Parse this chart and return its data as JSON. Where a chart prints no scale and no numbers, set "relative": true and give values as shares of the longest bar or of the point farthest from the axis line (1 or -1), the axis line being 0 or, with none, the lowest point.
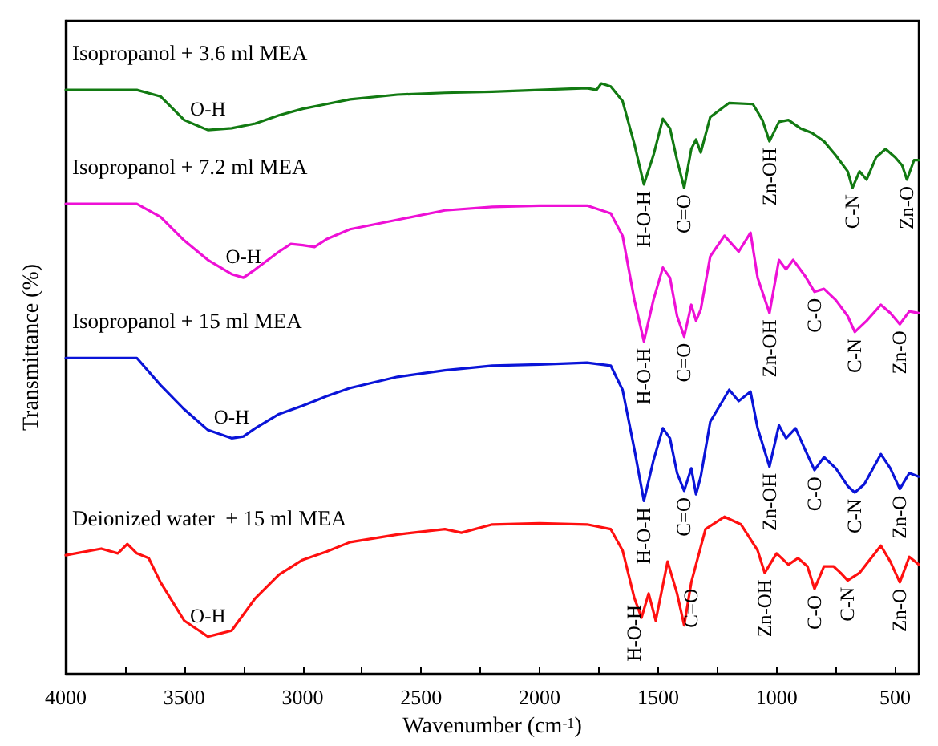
{
  "chart_data": {
    "type": "line",
    "relative": true,
    "xlabel": "Wavenumber (cm$^{-1}$)",
    "ylabel": "Transmittance (%)",
    "xlim": [
      4000,
      400
    ],
    "xticks": [
      4000,
      {
        "value": 3750,
        "label": null
      },
      3500,
      {
        "value": 3250,
        "label": null
      },
      3000,
      {
        "value": 2750,
        "label": null
      },
      2500,
      {
        "value": 2250,
        "label": null
      },
      2000,
      {
        "value": 1750,
        "label": null
      },
      1500,
      {
        "value": 1250,
        "label": null
      },
      1000,
      {
        "value": 750,
        "label": null
      },
      500
    ],
    "legend": false,
    "grid": false,
    "marker": "none",
    "line_style": "solid",
    "series": [
      {
        "name": "Isopropanol + 3.6 ml MEA",
        "color": "#127a12",
        "x": [
          4000,
          3700,
          3600,
          3500,
          3400,
          3300,
          3200,
          3100,
          3000,
          2900,
          2800,
          2600,
          2400,
          2200,
          2000,
          1800,
          1760,
          1740,
          1700,
          1650,
          1600,
          1560,
          1520,
          1480,
          1450,
          1420,
          1390,
          1360,
          1340,
          1320,
          1280,
          1200,
          1100,
          1060,
          1030,
          990,
          950,
          900,
          850,
          800,
          750,
          700,
          680,
          650,
          620,
          580,
          540,
          500,
          470,
          450,
          420,
          400
        ],
        "values": [
          0.989,
          0.989,
          0.978,
          0.938,
          0.921,
          0.924,
          0.932,
          0.946,
          0.957,
          0.965,
          0.973,
          0.981,
          0.984,
          0.986,
          0.989,
          0.992,
          0.989,
          1,
          0.995,
          0.97,
          0.897,
          0.829,
          0.878,
          0.94,
          0.924,
          0.87,
          0.823,
          0.889,
          0.905,
          0.883,
          0.943,
          0.967,
          0.965,
          0.938,
          0.902,
          0.935,
          0.938,
          0.924,
          0.916,
          0.902,
          0.878,
          0.851,
          0.823,
          0.851,
          0.837,
          0.875,
          0.889,
          0.875,
          0.861,
          0.837,
          0.87,
          0.87
        ]
      },
      {
        "name": "Isopropanol + 7.2 ml MEA",
        "color": "#ee10d6",
        "x": [
          4000,
          3700,
          3600,
          3500,
          3400,
          3300,
          3250,
          3200,
          3100,
          3050,
          3000,
          2950,
          2900,
          2800,
          2600,
          2400,
          2200,
          2000,
          1800,
          1700,
          1650,
          1600,
          1560,
          1520,
          1480,
          1450,
          1420,
          1390,
          1360,
          1340,
          1320,
          1280,
          1220,
          1160,
          1110,
          1080,
          1030,
          990,
          960,
          930,
          880,
          840,
          800,
          750,
          700,
          670,
          620,
          560,
          520,
          480,
          440,
          400
        ],
        "values": [
          0.796,
          0.796,
          0.774,
          0.734,
          0.701,
          0.677,
          0.671,
          0.685,
          0.715,
          0.728,
          0.726,
          0.723,
          0.736,
          0.753,
          0.769,
          0.785,
          0.791,
          0.793,
          0.793,
          0.78,
          0.742,
          0.633,
          0.563,
          0.633,
          0.688,
          0.671,
          0.606,
          0.571,
          0.625,
          0.598,
          0.617,
          0.707,
          0.742,
          0.715,
          0.747,
          0.671,
          0.611,
          0.701,
          0.685,
          0.701,
          0.674,
          0.647,
          0.652,
          0.633,
          0.606,
          0.579,
          0.598,
          0.625,
          0.611,
          0.592,
          0.614,
          0.611
        ]
      },
      {
        "name": "Isopropanol + 15 ml MEA",
        "color": "#0a14d8",
        "x": [
          4000,
          3700,
          3600,
          3500,
          3400,
          3300,
          3250,
          3200,
          3100,
          3000,
          2950,
          2900,
          2800,
          2600,
          2400,
          2200,
          2000,
          1800,
          1700,
          1650,
          1600,
          1560,
          1520,
          1480,
          1450,
          1420,
          1390,
          1360,
          1340,
          1320,
          1280,
          1200,
          1160,
          1110,
          1080,
          1030,
          990,
          960,
          920,
          880,
          840,
          800,
          750,
          700,
          670,
          630,
          560,
          520,
          480,
          440,
          400
        ],
        "values": [
          0.535,
          0.535,
          0.489,
          0.448,
          0.413,
          0.399,
          0.402,
          0.416,
          0.44,
          0.454,
          0.462,
          0.47,
          0.484,
          0.503,
          0.514,
          0.522,
          0.524,
          0.527,
          0.522,
          0.481,
          0.38,
          0.293,
          0.361,
          0.416,
          0.399,
          0.34,
          0.31,
          0.348,
          0.304,
          0.334,
          0.427,
          0.481,
          0.462,
          0.478,
          0.416,
          0.351,
          0.421,
          0.399,
          0.416,
          0.38,
          0.345,
          0.367,
          0.348,
          0.318,
          0.307,
          0.321,
          0.372,
          0.348,
          0.313,
          0.34,
          0.334
        ]
      },
      {
        "name": "Deionized water  + 15 ml MEA",
        "color": "#ff1010",
        "x": [
          4000,
          3850,
          3780,
          3740,
          3700,
          3650,
          3600,
          3500,
          3400,
          3300,
          3200,
          3100,
          3000,
          2900,
          2800,
          2600,
          2400,
          2330,
          2200,
          2000,
          1800,
          1700,
          1650,
          1600,
          1570,
          1540,
          1510,
          1460,
          1420,
          1390,
          1360,
          1300,
          1220,
          1150,
          1080,
          1050,
          1000,
          950,
          910,
          870,
          840,
          800,
          760,
          730,
          700,
          650,
          560,
          520,
          480,
          440,
          400
        ],
        "values": [
          0.201,
          0.212,
          0.204,
          0.22,
          0.204,
          0.196,
          0.155,
          0.09,
          0.063,
          0.073,
          0.128,
          0.168,
          0.193,
          0.207,
          0.223,
          0.236,
          0.245,
          0.239,
          0.253,
          0.255,
          0.253,
          0.245,
          0.209,
          0.128,
          0.095,
          0.136,
          0.09,
          0.19,
          0.136,
          0.082,
          0.155,
          0.245,
          0.266,
          0.253,
          0.209,
          0.171,
          0.204,
          0.185,
          0.196,
          0.182,
          0.144,
          0.182,
          0.182,
          0.171,
          0.158,
          0.171,
          0.217,
          0.19,
          0.155,
          0.198,
          0.185
        ]
      }
    ],
    "annotations": [
      {
        "text": "O-H",
        "x": 3400,
        "y": 0.921
      },
      {
        "text": "H-O-H",
        "x": 1560,
        "y": 0.829
      },
      {
        "text": "C=O",
        "x": 1390,
        "y": 0.823
      },
      {
        "text": "Zn-OH",
        "x": 1030,
        "y": 0.902
      },
      {
        "text": "C-N",
        "x": 680,
        "y": 0.823
      },
      {
        "text": "Zn-O",
        "x": 450,
        "y": 0.837
      },
      {
        "text": "O-H",
        "x": 3250,
        "y": 0.671
      },
      {
        "text": "H-O-H",
        "x": 1560,
        "y": 0.563
      },
      {
        "text": "C=O",
        "x": 1390,
        "y": 0.571
      },
      {
        "text": "Zn-OH",
        "x": 1030,
        "y": 0.611
      },
      {
        "text": "C-O",
        "x": 840,
        "y": 0.647
      },
      {
        "text": "C-N",
        "x": 670,
        "y": 0.579
      },
      {
        "text": "Zn-O",
        "x": 480,
        "y": 0.592
      },
      {
        "text": "O-H",
        "x": 3300,
        "y": 0.399
      },
      {
        "text": "H-O-H",
        "x": 1560,
        "y": 0.293
      },
      {
        "text": "C=O",
        "x": 1390,
        "y": 0.31
      },
      {
        "text": "Zn-OH",
        "x": 1030,
        "y": 0.351
      },
      {
        "text": "C-O",
        "x": 840,
        "y": 0.345
      },
      {
        "text": "C-N",
        "x": 670,
        "y": 0.307
      },
      {
        "text": "Zn-O",
        "x": 480,
        "y": 0.313
      },
      {
        "text": "O-H",
        "x": 3400,
        "y": 0.063
      },
      {
        "text": "H-O-H",
        "x": 1600,
        "y": 0.128
      },
      {
        "text": "C=O",
        "x": 1360,
        "y": 0.155
      },
      {
        "text": "Zn-OH",
        "x": 1050,
        "y": 0.171
      },
      {
        "text": "C-O",
        "x": 840,
        "y": 0.144
      },
      {
        "text": "C-N",
        "x": 700,
        "y": 0.158
      },
      {
        "text": "Zn-O",
        "x": 480,
        "y": 0.155
      }
    ]
  }
}
